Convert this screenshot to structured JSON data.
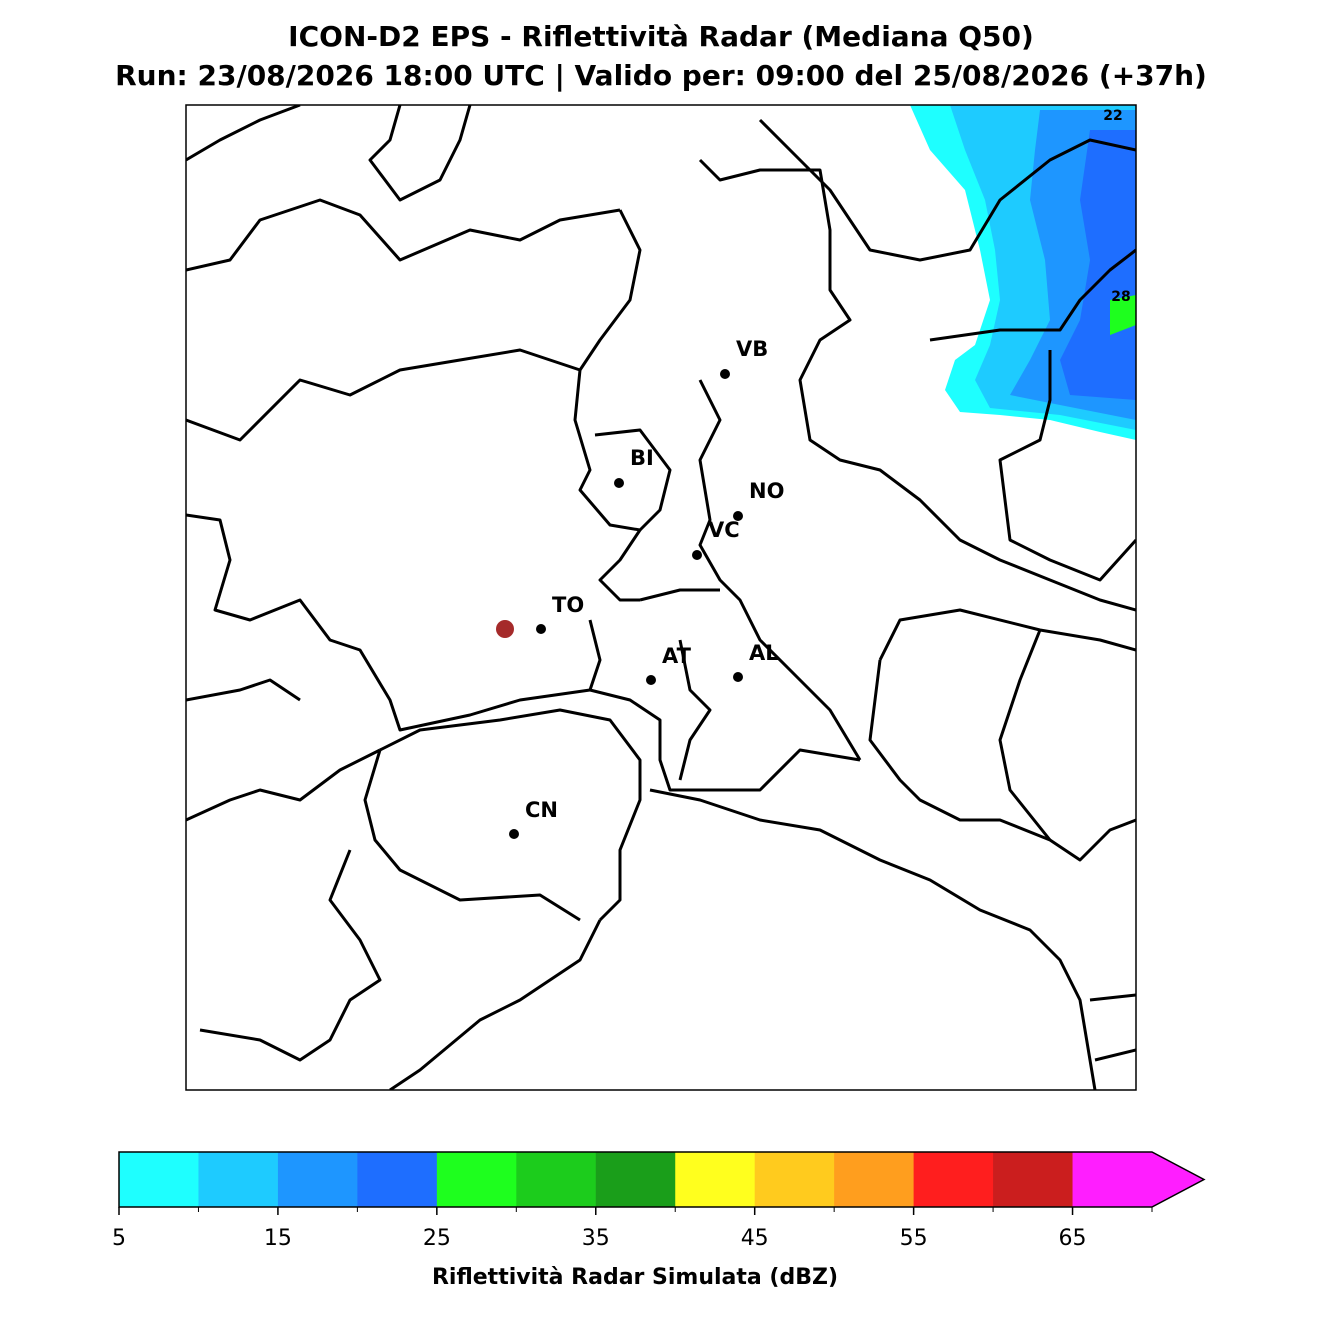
{
  "title": "ICON-D2 EPS - Riflettività Radar (Mediana Q50)",
  "subtitle": "Run: 23/08/2026 18:00 UTC | Valido per: 09:00 del 25/08/2026 (+37h)",
  "cities": [
    "VB",
    "BI",
    "NO",
    "VC",
    "TO",
    "AT",
    "AL",
    "CN"
  ],
  "contour_labels": [
    22,
    28
  ],
  "colorbar": {
    "label": "Riflettività Radar Simulata (dBZ)",
    "bounds": [
      5,
      10,
      15,
      20,
      25,
      30,
      35,
      40,
      45,
      50,
      55,
      60,
      65,
      70
    ],
    "colors": [
      "#1effff",
      "#1ecbff",
      "#1e96ff",
      "#1e6eff",
      "#1eff1e",
      "#1ccc1c",
      "#1a9e1a",
      "#ffff1e",
      "#ffcb1e",
      "#ff9e1e",
      "#ff1e1e",
      "#cb1e1e",
      "#ff1eff"
    ],
    "ticks": [
      5,
      15,
      25,
      35,
      45,
      55,
      65
    ],
    "extend": "max"
  }
}
